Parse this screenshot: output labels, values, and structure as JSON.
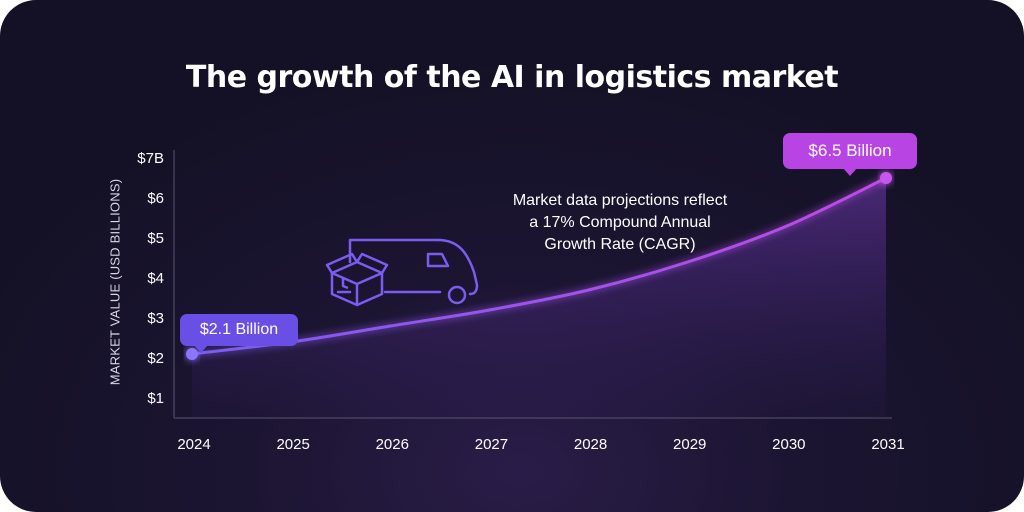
{
  "title": "The growth of the AI in logistics market",
  "annotation": {
    "lines": [
      "Market data projections reflect",
      "a 17% Compound Annual",
      "Growth Rate (CAGR)"
    ]
  },
  "icons": [
    "delivery-van-icon",
    "package-box-icon"
  ],
  "callouts": {
    "start": "$2.1 Billion",
    "end": "$6.5 Billion"
  },
  "colors": {
    "background": "#1c1532",
    "line_start": "#7b5cf0",
    "line_end": "#c04ae8",
    "start_callout": "#6a4fe6",
    "end_callout": "#b844e4",
    "icon": "#7a5cf0"
  },
  "chart_data": {
    "type": "area",
    "title": "The growth of the AI in logistics market",
    "xlabel": "",
    "ylabel": "MARKET VALUE (USD BILLIONS)",
    "x": [
      2024,
      2025,
      2026,
      2027,
      2028,
      2029,
      2030,
      2031
    ],
    "x_tick_labels": [
      "2024",
      "2025",
      "2026",
      "2027",
      "2028",
      "2029",
      "2030",
      "2031"
    ],
    "y_tick_labels": [
      "$1",
      "$2",
      "$3",
      "$4",
      "$5",
      "$6",
      "$7B"
    ],
    "y_ticks": [
      1,
      2,
      3,
      4,
      5,
      6,
      7
    ],
    "ylim": [
      0.7,
      7.4
    ],
    "series": [
      {
        "values": [
          2.1,
          2.4,
          2.8,
          3.2,
          3.7,
          4.4,
          5.3,
          6.5
        ]
      }
    ],
    "grid": false,
    "legend": "none"
  }
}
